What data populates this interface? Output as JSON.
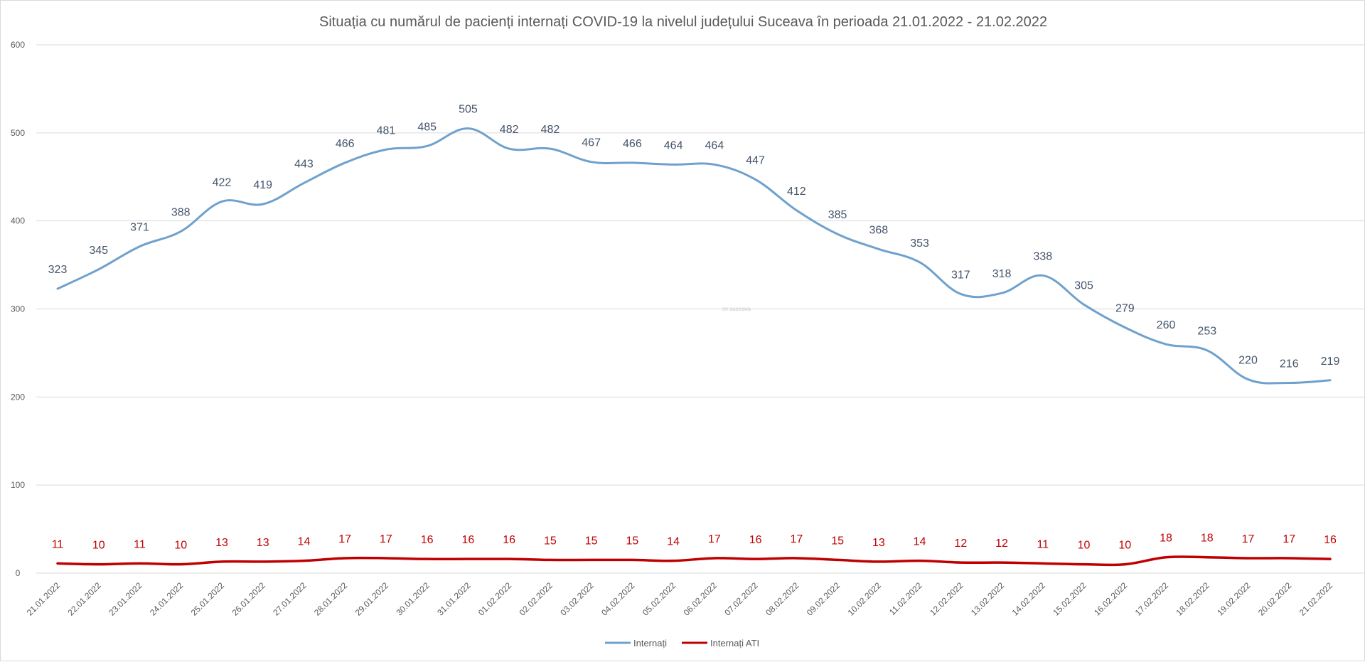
{
  "chart_data": {
    "type": "line",
    "title": "Situația cu numărul de pacienți internați COVID-19 la nivelul județului Suceava în perioada 21.01.2022 - 21.02.2022",
    "categories": [
      "21.01.2022",
      "22.01.2022",
      "23.01.2022",
      "24.01.2022",
      "25.01.2022",
      "26.01.2022",
      "27.01.2022",
      "28.01.2022",
      "29.01.2022",
      "30.01.2022",
      "31.01.2022",
      "01.02.2022",
      "02.02.2022",
      "03.02.2022",
      "04.02.2022",
      "05.02.2022",
      "06.02.2022",
      "07.02.2022",
      "08.02.2022",
      "09.02.2022",
      "10.02.2022",
      "11.02.2022",
      "12.02.2022",
      "13.02.2022",
      "14.02.2022",
      "15.02.2022",
      "16.02.2022",
      "17.02.2022",
      "18.02.2022",
      "19.02.2022",
      "20.02.2022",
      "21.02.2022"
    ],
    "series": [
      {
        "name": "Internați",
        "color": "#6fa1cc",
        "label_color": "#44546a",
        "values": [
          323,
          345,
          371,
          388,
          422,
          419,
          443,
          466,
          481,
          485,
          505,
          482,
          482,
          467,
          466,
          464,
          464,
          447,
          412,
          385,
          368,
          353,
          317,
          318,
          338,
          305,
          279,
          260,
          253,
          220,
          216,
          219
        ]
      },
      {
        "name": "Internați ATI",
        "color": "#c00000",
        "label_color": "#c00000",
        "values": [
          11,
          10,
          11,
          10,
          13,
          13,
          14,
          17,
          17,
          16,
          16,
          16,
          15,
          15,
          15,
          14,
          17,
          16,
          17,
          15,
          13,
          14,
          12,
          12,
          11,
          10,
          10,
          18,
          18,
          17,
          17,
          16
        ]
      }
    ],
    "ylim": [
      0,
      600
    ],
    "yticks": [
      "0",
      "100",
      "200",
      "300",
      "400",
      "500",
      "600"
    ],
    "grid": true,
    "legend_position": "bottom",
    "watermark": "sv suceava",
    "gridline_color": "#d9d9d9"
  }
}
